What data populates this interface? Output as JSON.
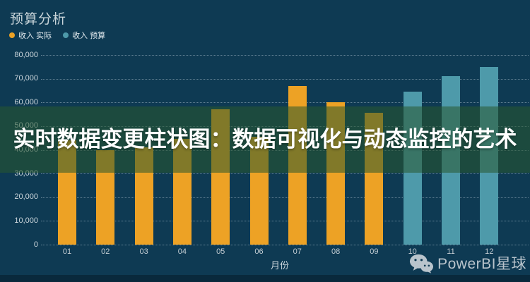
{
  "header": {
    "title": "预算分析",
    "legend": [
      {
        "label": "收入 实际",
        "color": "#eda225"
      },
      {
        "label": "收入 预算",
        "color": "#4e9aaa"
      }
    ]
  },
  "overlay_banner": {
    "text": "实时数据变更柱状图：数据可视化与动态监控的艺术",
    "overlay_color": "rgba(40,88,46,0.55)",
    "text_color": "#ffffff"
  },
  "watermark": {
    "icon": "wechat-icon",
    "text": "PowerBI星球",
    "color": "#b9c4cc"
  },
  "theme": {
    "background": "#0e3a53",
    "actual_color": "#eda225",
    "budget_color": "#4e9aaa",
    "grid_color": "rgba(213,227,235,0.42)"
  },
  "chart_data": {
    "type": "bar",
    "title": "预算分析",
    "categories": [
      "01",
      "02",
      "03",
      "04",
      "05",
      "06",
      "07",
      "08",
      "09",
      "10",
      "11",
      "12"
    ],
    "xlabel": "月份",
    "ylabel": "",
    "ylim": [
      0,
      80000
    ],
    "ytick_labels": [
      "0",
      "10,000",
      "20,000",
      "30,000",
      "40,000",
      "50,000",
      "60,000",
      "70,000",
      "80,000"
    ],
    "grid": "dotted-horizontal",
    "legend_position": "top-left",
    "series": [
      {
        "name": "收入 实际",
        "color": "#eda225",
        "values": [
          44000,
          40000,
          41000,
          44500,
          57000,
          45500,
          67000,
          60000,
          55500,
          null,
          null,
          null
        ]
      },
      {
        "name": "收入 预算",
        "color": "#4e9aaa",
        "values": [
          null,
          null,
          null,
          null,
          null,
          null,
          null,
          null,
          null,
          64500,
          71000,
          75000
        ]
      }
    ]
  }
}
